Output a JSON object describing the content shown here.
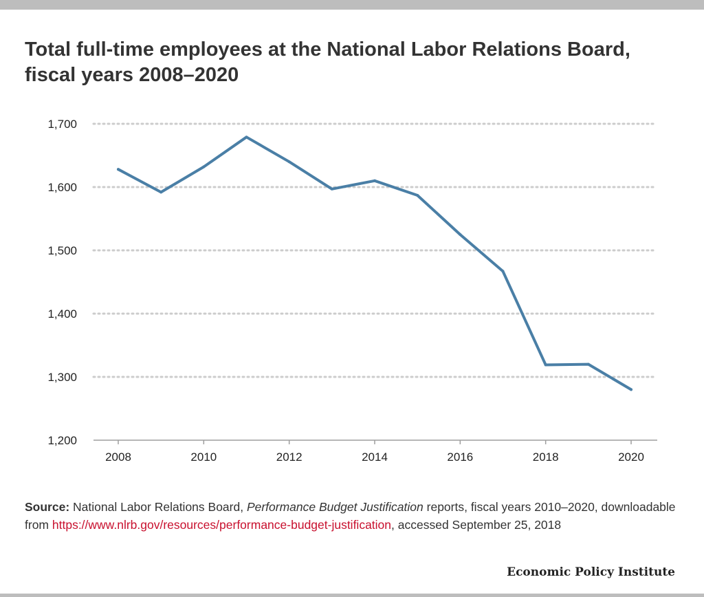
{
  "title": "Total full-time employees at the National Labor Relations Board, fiscal years 2008–2020",
  "source": {
    "label": "Source:",
    "text_before": " National Labor Relations Board, ",
    "italic": "Performance Budget Justification",
    "text_middle": " reports, fiscal years 2010–2020, downloadable from ",
    "link": "https://www.nlrb.gov/resources/performance-budget-justification",
    "text_after": ", accessed September 25, 2018"
  },
  "brand": "Economic Policy Institute",
  "colors": {
    "line": "#4a7fa6",
    "grid": "#cccccc",
    "axis": "#9e9e9e",
    "link": "#c8102e"
  },
  "chart_data": {
    "type": "line",
    "title": "Total full-time employees at the National Labor Relations Board, fiscal years 2008–2020",
    "xlabel": "",
    "ylabel": "",
    "x": [
      2008,
      2009,
      2010,
      2011,
      2012,
      2013,
      2014,
      2015,
      2016,
      2017,
      2018,
      2019,
      2020
    ],
    "series": [
      {
        "values": [
          1628,
          1592,
          1632,
          1679,
          1640,
          1597,
          1610,
          1587,
          1525,
          1467,
          1319,
          1320,
          1280
        ]
      }
    ],
    "xticks": [
      "2008",
      "2010",
      "2012",
      "2014",
      "2016",
      "2018",
      "2020"
    ],
    "yticks": [
      "1,200",
      "1,300",
      "1,400",
      "1,500",
      "1,600",
      "1,700"
    ],
    "xlim": [
      2008,
      2020
    ],
    "ylim": [
      1200,
      1700
    ],
    "grid": true,
    "legend": "none"
  }
}
